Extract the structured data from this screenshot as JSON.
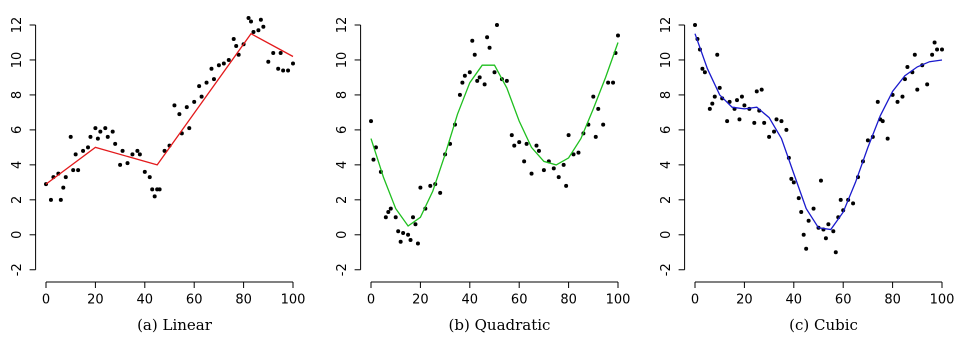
{
  "chart_data": [
    {
      "type": "scatter",
      "title": "(a) Linear",
      "xlim": [
        -3,
        103
      ],
      "ylim": [
        -2.3,
        12.8
      ],
      "xticks": [
        0,
        20,
        40,
        60,
        80,
        100
      ],
      "yticks": [
        -2,
        0,
        2,
        4,
        6,
        8,
        10,
        12
      ],
      "series": [
        {
          "color": "#000000",
          "x": [
            0,
            2,
            3,
            5,
            6,
            7,
            8,
            10,
            11,
            12,
            13,
            15,
            17,
            18,
            20,
            21,
            22,
            24,
            25,
            27,
            28,
            30,
            31,
            33,
            35,
            37,
            38,
            40,
            42,
            43,
            44,
            45,
            46,
            48,
            50,
            52,
            54,
            55,
            57,
            58,
            60,
            62,
            63,
            65,
            67,
            68,
            70,
            72,
            74,
            76,
            77,
            78,
            80,
            82,
            83,
            84,
            86,
            87,
            88,
            90,
            92,
            94,
            95,
            96,
            98,
            100
          ],
          "values": [
            2.9,
            2.0,
            3.3,
            3.5,
            2.0,
            2.7,
            3.3,
            5.6,
            3.7,
            4.6,
            3.7,
            4.8,
            5.0,
            5.6,
            6.1,
            5.5,
            5.9,
            6.1,
            5.6,
            5.9,
            5.2,
            4.0,
            4.8,
            4.1,
            4.6,
            4.8,
            4.6,
            3.6,
            3.3,
            2.6,
            2.2,
            2.6,
            2.6,
            4.8,
            5.1,
            7.4,
            6.9,
            5.8,
            7.3,
            6.1,
            7.6,
            8.5,
            7.9,
            8.7,
            9.5,
            8.9,
            9.7,
            9.8,
            10.0,
            11.2,
            10.8,
            10.3,
            10.9,
            12.4,
            12.2,
            11.6,
            11.7,
            12.3,
            11.9,
            9.9,
            10.4,
            9.5,
            10.4,
            9.4,
            9.4,
            9.8
          ]
        },
        {
          "type": "line",
          "color": "#e31a1c",
          "x": [
            0,
            20,
            45,
            83,
            100
          ],
          "values": [
            2.9,
            5.0,
            4.0,
            11.5,
            10.2
          ]
        }
      ]
    },
    {
      "type": "scatter",
      "title": "(b) Quadratic",
      "xlim": [
        -3,
        103
      ],
      "ylim": [
        -2.3,
        12.8
      ],
      "xticks": [
        0,
        20,
        40,
        60,
        80,
        100
      ],
      "yticks": [
        -2,
        0,
        2,
        4,
        6,
        8,
        10,
        12
      ],
      "series": [
        {
          "color": "#000000",
          "x": [
            0,
            1,
            2,
            4,
            6,
            7,
            8,
            10,
            11,
            12,
            13,
            15,
            16,
            17,
            18,
            19,
            20,
            22,
            24,
            26,
            28,
            30,
            32,
            34,
            36,
            37,
            38,
            40,
            41,
            42,
            43,
            44,
            46,
            47,
            48,
            50,
            51,
            53,
            55,
            57,
            58,
            60,
            62,
            63,
            65,
            67,
            68,
            70,
            72,
            74,
            76,
            78,
            79,
            80,
            82,
            84,
            86,
            88,
            90,
            91,
            92,
            94,
            96,
            98,
            99,
            100
          ],
          "values": [
            6.5,
            4.3,
            5.0,
            3.6,
            1.0,
            1.3,
            1.5,
            1.0,
            0.2,
            -0.4,
            0.1,
            0.0,
            -0.3,
            1.0,
            0.6,
            -0.5,
            2.7,
            1.5,
            2.8,
            2.9,
            2.4,
            4.6,
            5.2,
            6.3,
            8.0,
            8.7,
            9.1,
            9.3,
            11.1,
            10.3,
            8.8,
            9.0,
            8.6,
            11.3,
            10.7,
            9.3,
            12.0,
            8.9,
            8.8,
            5.7,
            5.1,
            5.3,
            4.2,
            5.2,
            3.5,
            5.1,
            4.8,
            3.7,
            4.2,
            3.8,
            3.3,
            4.0,
            2.8,
            5.7,
            4.6,
            4.7,
            5.8,
            6.3,
            7.9,
            5.6,
            7.2,
            6.3,
            8.7,
            8.7,
            10.4,
            11.4
          ]
        },
        {
          "type": "line",
          "color": "#1fbf1f",
          "x": [
            0,
            5,
            10,
            15,
            20,
            25,
            30,
            35,
            40,
            45,
            50,
            55,
            60,
            65,
            70,
            75,
            80,
            85,
            90,
            95,
            100
          ],
          "values": [
            5.5,
            3.3,
            1.5,
            0.5,
            1.0,
            2.5,
            4.6,
            6.9,
            8.7,
            9.7,
            9.7,
            8.4,
            6.5,
            5.0,
            4.2,
            4.0,
            4.4,
            5.5,
            7.2,
            9.0,
            11.0
          ]
        }
      ]
    },
    {
      "type": "scatter",
      "title": "(c) Cubic",
      "xlim": [
        -3,
        103
      ],
      "ylim": [
        -2.3,
        12.8
      ],
      "xticks": [
        0,
        20,
        40,
        60,
        80,
        100
      ],
      "yticks": [
        -2,
        0,
        2,
        4,
        6,
        8,
        10,
        12
      ],
      "series": [
        {
          "color": "#000000",
          "x": [
            0,
            1,
            2,
            3,
            4,
            6,
            7,
            8,
            9,
            10,
            11,
            13,
            14,
            16,
            17,
            18,
            19,
            20,
            22,
            24,
            25,
            26,
            27,
            28,
            30,
            32,
            33,
            35,
            37,
            38,
            39,
            40,
            42,
            43,
            44,
            45,
            46,
            48,
            50,
            51,
            52,
            53,
            54,
            56,
            57,
            58,
            59,
            60,
            62,
            64,
            66,
            68,
            70,
            72,
            74,
            75,
            76,
            78,
            80,
            82,
            84,
            85,
            86,
            88,
            89,
            90,
            92,
            94,
            96,
            97,
            98,
            100
          ],
          "values": [
            12.0,
            11.2,
            10.6,
            9.5,
            9.3,
            7.2,
            7.5,
            7.9,
            10.3,
            8.4,
            7.8,
            6.5,
            7.6,
            7.2,
            7.7,
            6.6,
            7.9,
            7.4,
            7.2,
            6.4,
            8.2,
            7.1,
            8.3,
            6.4,
            5.6,
            5.9,
            6.6,
            6.5,
            6.0,
            4.4,
            3.2,
            3.0,
            2.1,
            1.3,
            0.0,
            -0.8,
            0.8,
            1.5,
            0.4,
            3.1,
            0.3,
            -0.2,
            0.6,
            0.2,
            -1.0,
            1.0,
            2.0,
            1.4,
            2.0,
            1.8,
            3.3,
            4.2,
            5.4,
            5.6,
            7.6,
            6.6,
            6.5,
            5.5,
            8.0,
            7.6,
            7.9,
            8.9,
            9.6,
            9.3,
            10.3,
            8.3,
            9.7,
            8.6,
            10.3,
            11.0,
            10.6,
            10.6
          ]
        },
        {
          "type": "line",
          "color": "#1a1acd",
          "x": [
            0,
            5,
            10,
            15,
            20,
            25,
            30,
            35,
            40,
            45,
            50,
            55,
            60,
            65,
            70,
            75,
            80,
            85,
            90,
            95,
            100
          ],
          "values": [
            11.5,
            9.5,
            8.0,
            7.3,
            7.2,
            7.3,
            6.7,
            5.5,
            3.5,
            1.5,
            0.4,
            0.3,
            1.3,
            3.0,
            5.0,
            6.8,
            8.2,
            9.1,
            9.6,
            9.9,
            10.0
          ]
        }
      ]
    }
  ]
}
